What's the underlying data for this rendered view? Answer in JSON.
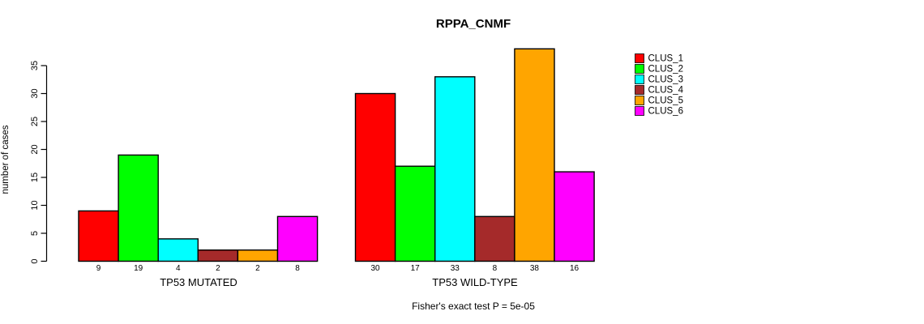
{
  "chart_data": {
    "type": "bar",
    "title": "RPPA_CNMF",
    "ylabel": "number of cases",
    "xlabel": "",
    "ylim": [
      0,
      35
    ],
    "yticks": [
      0,
      5,
      10,
      15,
      20,
      25,
      30,
      35
    ],
    "grid": false,
    "legend_position": "right",
    "bar_value_labels_shown": true,
    "groups": [
      {
        "label": "TP53 MUTATED",
        "values": [
          9,
          19,
          4,
          2,
          2,
          8
        ]
      },
      {
        "label": "TP53 WILD-TYPE",
        "values": [
          30,
          17,
          33,
          8,
          38,
          16
        ]
      }
    ],
    "legend": [
      {
        "label": "CLUS_1",
        "color": "#FF0000"
      },
      {
        "label": "CLUS_2",
        "color": "#00FF00"
      },
      {
        "label": "CLUS_3",
        "color": "#00FFFF"
      },
      {
        "label": "CLUS_4",
        "color": "#A52A2A"
      },
      {
        "label": "CLUS_5",
        "color": "#FFA500"
      },
      {
        "label": "CLUS_6",
        "color": "#FF00FF"
      }
    ],
    "footnote": "Fisher's exact test P = 5e-05",
    "colors": {
      "background": "#FFFFFF",
      "axis": "#000000",
      "bar_border": "#000000",
      "text": "#000000"
    }
  }
}
